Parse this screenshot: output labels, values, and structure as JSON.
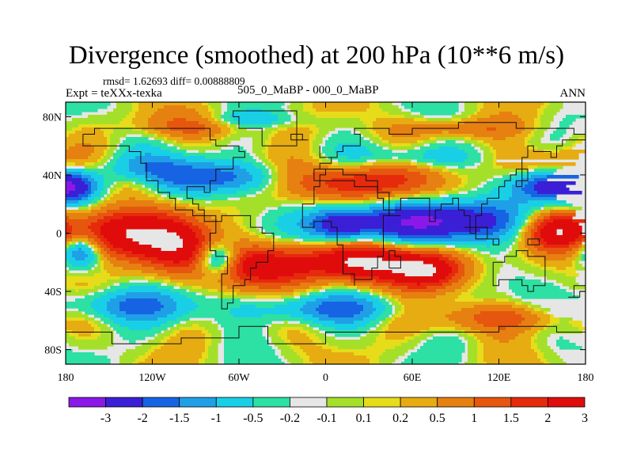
{
  "header": {
    "title": "Divergence (smoothed) at 200 hPa (10**6 m/s)",
    "stats": "rmsd= 1.62693 diff= 0.00888809",
    "expt": "Expt = teXXx-texka",
    "comparison": "505_0_MaBP - 000_0_MaBP",
    "season": "ANN"
  },
  "axes": {
    "x_ticks": [
      {
        "lon": -180,
        "label": "180"
      },
      {
        "lon": -120,
        "label": "120W"
      },
      {
        "lon": -60,
        "label": "60W"
      },
      {
        "lon": 0,
        "label": "0"
      },
      {
        "lon": 60,
        "label": "60E"
      },
      {
        "lon": 120,
        "label": "120E"
      },
      {
        "lon": 180,
        "label": "180"
      }
    ],
    "y_ticks": [
      {
        "lat": 80,
        "label": "80N"
      },
      {
        "lat": 40,
        "label": "40N"
      },
      {
        "lat": 0,
        "label": "0"
      },
      {
        "lat": -40,
        "label": "40S"
      },
      {
        "lat": -80,
        "label": "80S"
      }
    ],
    "lon_range": [
      -180,
      180
    ],
    "lat_range": [
      -90,
      90
    ]
  },
  "colorbar": {
    "colors": [
      "#8a19e8",
      "#3a1fd6",
      "#1664e4",
      "#1fa0e6",
      "#19cfe6",
      "#2de0a3",
      "#e6e6e6",
      "#a4e02a",
      "#e6dc1a",
      "#e6ac12",
      "#e68010",
      "#e6560e",
      "#e62a0c",
      "#e00c0c"
    ],
    "labels": [
      "-3",
      "-2",
      "-1.5",
      "-1",
      "-0.5",
      "-0.2",
      "-0.1",
      "0.1",
      "0.2",
      "0.5",
      "1",
      "1.5",
      "2",
      "3"
    ],
    "levels": [
      -3,
      -2,
      -1.5,
      -1,
      -0.5,
      -0.2,
      -0.1,
      0.1,
      0.2,
      0.5,
      1,
      1.5,
      2,
      3
    ]
  },
  "field": {
    "centers": [
      {
        "lon": -150,
        "lat": 0,
        "amp": 2.8,
        "slon": 28,
        "slat": 12
      },
      {
        "lon": -100,
        "lat": -8,
        "amp": 2.5,
        "slon": 18,
        "slat": 14
      },
      {
        "lon": -40,
        "lat": -22,
        "amp": 2.7,
        "slon": 28,
        "slat": 10
      },
      {
        "lon": 30,
        "lat": -20,
        "amp": 3.0,
        "slon": 25,
        "slat": 10
      },
      {
        "lon": 70,
        "lat": -25,
        "amp": 2.6,
        "slon": 18,
        "slat": 9
      },
      {
        "lon": 160,
        "lat": 2,
        "amp": 2.6,
        "slon": 16,
        "slat": 9
      },
      {
        "lon": 20,
        "lat": 35,
        "amp": 2.2,
        "slon": 35,
        "slat": 10
      },
      {
        "lon": -130,
        "lat": 35,
        "amp": 1.3,
        "slon": 16,
        "slat": 7
      },
      {
        "lon": 150,
        "lat": 48,
        "amp": 1.1,
        "slon": 22,
        "slat": 8
      },
      {
        "lon": -90,
        "lat": 75,
        "amp": 1.2,
        "slon": 30,
        "slat": 6
      },
      {
        "lon": 90,
        "lat": 72,
        "amp": 1.0,
        "slon": 30,
        "slat": 5
      },
      {
        "lon": 120,
        "lat": -58,
        "amp": 1.3,
        "slon": 35,
        "slat": 7
      },
      {
        "lon": 80,
        "lat": 8,
        "amp": -3.0,
        "slon": 45,
        "slat": 10
      },
      {
        "lon": 160,
        "lat": 32,
        "amp": -2.6,
        "slon": 20,
        "slat": 8
      },
      {
        "lon": -175,
        "lat": 32,
        "amp": -2.2,
        "slon": 12,
        "slat": 8
      },
      {
        "lon": -170,
        "lat": -12,
        "amp": -2.0,
        "slon": 10,
        "slat": 8
      },
      {
        "lon": -75,
        "lat": -18,
        "amp": -2.4,
        "slon": 10,
        "slat": 8
      },
      {
        "lon": 10,
        "lat": 5,
        "amp": -2.6,
        "slon": 16,
        "slat": 9
      },
      {
        "lon": -115,
        "lat": 40,
        "amp": -1.8,
        "slon": 30,
        "slat": 9
      },
      {
        "lon": -60,
        "lat": 38,
        "amp": -1.4,
        "slon": 25,
        "slat": 8
      },
      {
        "lon": 60,
        "lat": 52,
        "amp": -1.1,
        "slon": 30,
        "slat": 6
      },
      {
        "lon": -140,
        "lat": -50,
        "amp": -1.5,
        "slon": 35,
        "slat": 8
      },
      {
        "lon": 0,
        "lat": -52,
        "amp": -1.4,
        "slon": 40,
        "slat": 7
      },
      {
        "lon": -60,
        "lat": 78,
        "amp": -0.9,
        "slon": 30,
        "slat": 4
      }
    ],
    "waves": [
      {
        "klon": 3,
        "klat": 4,
        "amp": 0.4,
        "phase": 1.0
      },
      {
        "klon": 5,
        "klat": 3,
        "amp": 0.35,
        "phase": 0.3
      }
    ]
  }
}
